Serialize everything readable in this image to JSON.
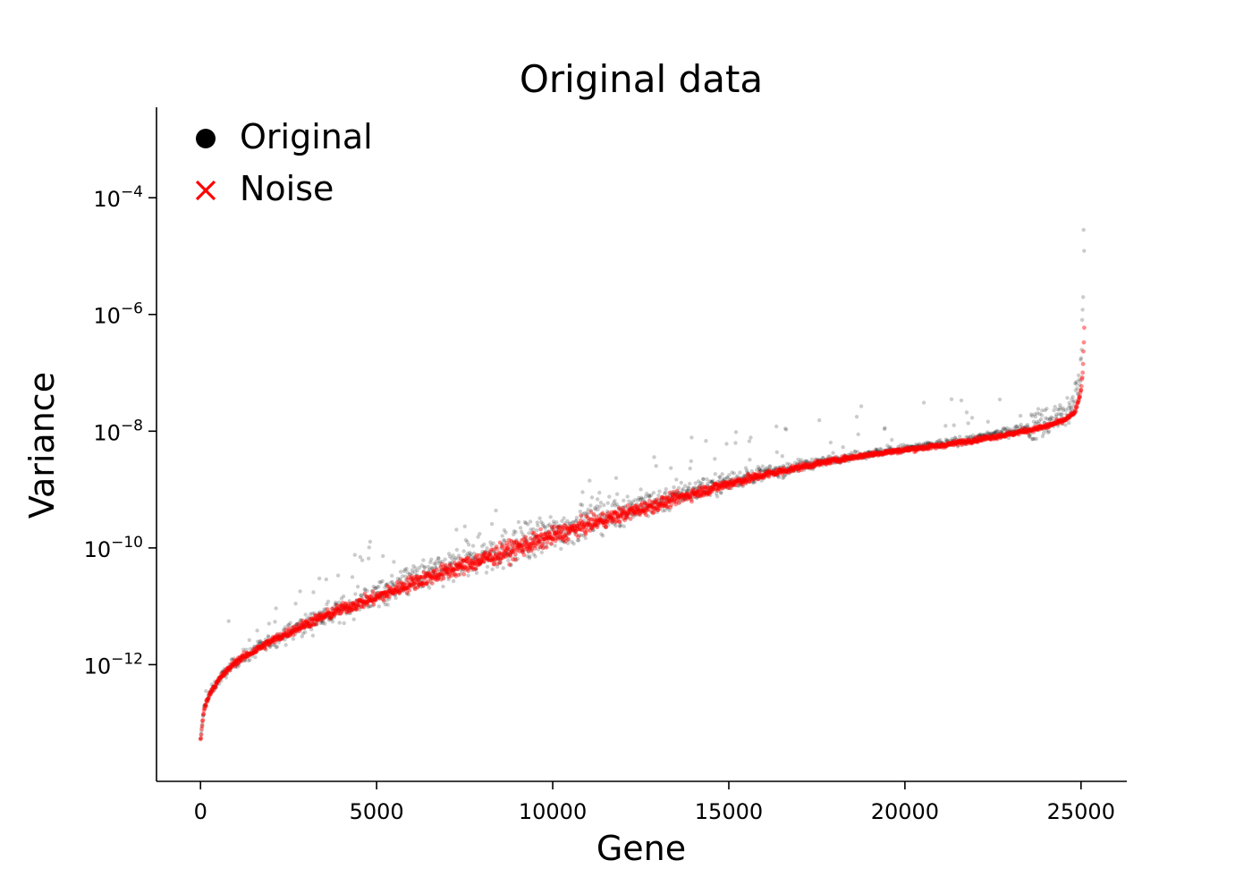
{
  "chart_data": {
    "type": "scatter",
    "title": "Original data",
    "xlabel": "Gene",
    "ylabel": "Variance",
    "xlim": [
      -1250,
      26300
    ],
    "ylim_log10": [
      -14.0,
      -2.45
    ],
    "yscale": "log",
    "grid": false,
    "legend_position": "top-left",
    "x_ticks": [
      0,
      5000,
      10000,
      15000,
      20000,
      25000
    ],
    "x_tick_labels": [
      "0",
      "5000",
      "10000",
      "15000",
      "20000",
      "25000"
    ],
    "y_ticks_log10": [
      -12,
      -10,
      -8,
      -6,
      -4
    ],
    "y_tick_base": "10",
    "y_tick_exponents": [
      "−12",
      "−10",
      "−8",
      "−6",
      "−4"
    ],
    "n_genes": 25100,
    "series": [
      {
        "name": "Original",
        "marker": "circle",
        "color": "#000000",
        "x": [
          0,
          100,
          300,
          600,
          1000,
          2000,
          3000,
          4000,
          5000,
          6000,
          7000,
          8000,
          9000,
          10000,
          11000,
          12000,
          13000,
          14000,
          15000,
          16000,
          17000,
          18000,
          19000,
          20000,
          21000,
          22000,
          23000,
          24000,
          24500,
          24800,
          24900,
          25000,
          25050,
          25100
        ],
        "log10_variance": [
          -13.3,
          -12.75,
          -12.45,
          -12.2,
          -11.95,
          -11.6,
          -11.3,
          -11.05,
          -10.8,
          -10.55,
          -10.35,
          -10.15,
          -9.95,
          -9.75,
          -9.55,
          -9.35,
          -9.2,
          -9.0,
          -8.85,
          -8.72,
          -8.6,
          -8.48,
          -8.38,
          -8.3,
          -8.22,
          -8.12,
          -8.0,
          -7.85,
          -7.72,
          -7.55,
          -7.3,
          -6.8,
          -6.0,
          -4.5
        ]
      },
      {
        "name": "Noise",
        "marker": "x",
        "color": "#ff0000",
        "x": [
          0,
          100,
          300,
          600,
          1000,
          2000,
          3000,
          4000,
          5000,
          6000,
          7000,
          8000,
          9000,
          10000,
          11000,
          12000,
          13000,
          14000,
          15000,
          16000,
          17000,
          18000,
          19000,
          20000,
          21000,
          22000,
          23000,
          24000,
          24500,
          24800,
          24900,
          25000,
          25050,
          25100
        ],
        "log10_variance": [
          -13.3,
          -12.75,
          -12.45,
          -12.2,
          -11.95,
          -11.6,
          -11.3,
          -11.05,
          -10.85,
          -10.6,
          -10.4,
          -10.2,
          -10.0,
          -9.8,
          -9.6,
          -9.42,
          -9.25,
          -9.07,
          -8.9,
          -8.75,
          -8.62,
          -8.5,
          -8.4,
          -8.32,
          -8.25,
          -8.15,
          -8.05,
          -7.92,
          -7.82,
          -7.7,
          -7.55,
          -7.3,
          -7.0,
          -6.1
        ]
      }
    ]
  }
}
